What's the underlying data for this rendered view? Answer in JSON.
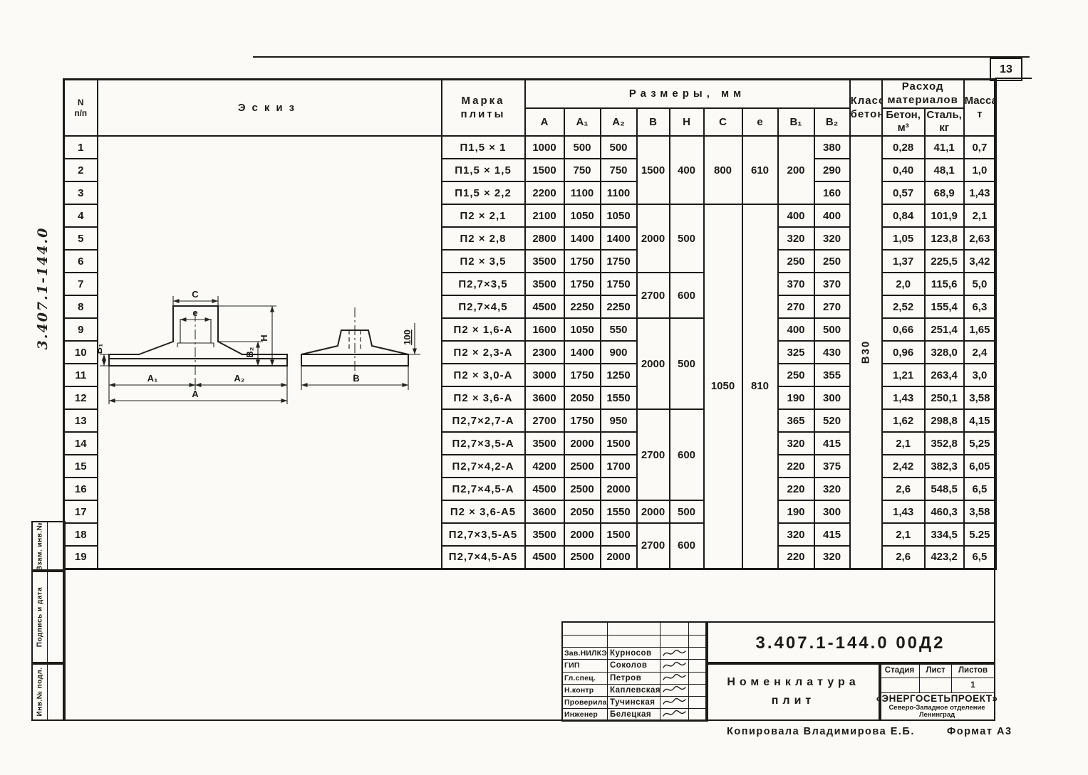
{
  "page": {
    "sheet_number": "13",
    "margin_code": "3.407.1-144.0",
    "copied_by": "Копировала  Владимирова Е.Б.",
    "format_note": "Формат А3"
  },
  "sidebar": {
    "stamps": [
      "Взам. инв.№",
      "Подпись и дата",
      "Инв.№ подл."
    ]
  },
  "table": {
    "headers": {
      "num": [
        "N",
        "п/п"
      ],
      "sketch": "Эскиз",
      "mark": [
        "Марка",
        "плиты"
      ],
      "sizes": "Размеры,  мм",
      "size_cols": [
        "А",
        "А₁",
        "А₂",
        "В",
        "Н",
        "С",
        "е",
        "В₁",
        "В₂"
      ],
      "concrete_class": [
        "Класс",
        "бетона"
      ],
      "materials": [
        "Расход",
        "материалов"
      ],
      "material_cols": [
        [
          "Бетон,",
          "м³"
        ],
        [
          "Сталь,",
          "кг"
        ]
      ],
      "mass": [
        "Масса,",
        "т"
      ]
    },
    "concrete_class_value": "В30",
    "rows": [
      [
        "1",
        "П1,5 × 1",
        "1000",
        "500",
        "500",
        [
          "1500",
          3
        ],
        [
          "400",
          3
        ],
        [
          "800",
          3
        ],
        [
          "610",
          3
        ],
        [
          "200",
          3
        ],
        "380",
        [
          "В30",
          19
        ],
        "0,28",
        "41,1",
        "0,7"
      ],
      [
        "2",
        "П1,5 × 1,5",
        "1500",
        "750",
        "750",
        null,
        null,
        null,
        null,
        null,
        "290",
        null,
        "0,40",
        "48,1",
        "1,0"
      ],
      [
        "3",
        "П1,5 × 2,2",
        "2200",
        "1100",
        "1100",
        null,
        null,
        null,
        null,
        null,
        "160",
        null,
        "0,57",
        "68,9",
        "1,43"
      ],
      [
        "4",
        "П2 × 2,1",
        "2100",
        "1050",
        "1050",
        [
          "2000",
          3
        ],
        [
          "500",
          3
        ],
        [
          "1050",
          16
        ],
        [
          "810",
          16
        ],
        "400",
        "400",
        null,
        "0,84",
        "101,9",
        "2,1"
      ],
      [
        "5",
        "П2 × 2,8",
        "2800",
        "1400",
        "1400",
        null,
        null,
        null,
        null,
        "320",
        "320",
        null,
        "1,05",
        "123,8",
        "2,63"
      ],
      [
        "6",
        "П2 × 3,5",
        "3500",
        "1750",
        "1750",
        null,
        null,
        null,
        null,
        "250",
        "250",
        null,
        "1,37",
        "225,5",
        "3,42"
      ],
      [
        "7",
        "П2,7×3,5",
        "3500",
        "1750",
        "1750",
        [
          "2700",
          2
        ],
        [
          "600",
          2
        ],
        null,
        null,
        "370",
        "370",
        null,
        "2,0",
        "115,6",
        "5,0"
      ],
      [
        "8",
        "П2,7×4,5",
        "4500",
        "2250",
        "2250",
        null,
        null,
        null,
        null,
        "270",
        "270",
        null,
        "2,52",
        "155,4",
        "6,3"
      ],
      [
        "9",
        "П2 × 1,6-А",
        "1600",
        "1050",
        "550",
        [
          "2000",
          4
        ],
        [
          "500",
          4
        ],
        null,
        null,
        "400",
        "500",
        null,
        "0,66",
        "251,4",
        "1,65"
      ],
      [
        "10",
        "П2 × 2,3-А",
        "2300",
        "1400",
        "900",
        null,
        null,
        null,
        null,
        "325",
        "430",
        null,
        "0,96",
        "328,0",
        "2,4"
      ],
      [
        "11",
        "П2 × 3,0-А",
        "3000",
        "1750",
        "1250",
        null,
        null,
        null,
        null,
        "250",
        "355",
        null,
        "1,21",
        "263,4",
        "3,0"
      ],
      [
        "12",
        "П2 × 3,6-А",
        "3600",
        "2050",
        "1550",
        null,
        null,
        null,
        null,
        "190",
        "300",
        null,
        "1,43",
        "250,1",
        "3,58"
      ],
      [
        "13",
        "П2,7×2,7-А",
        "2700",
        "1750",
        "950",
        [
          "2700",
          4
        ],
        [
          "600",
          4
        ],
        null,
        null,
        "365",
        "520",
        null,
        "1,62",
        "298,8",
        "4,15"
      ],
      [
        "14",
        "П2,7×3,5-А",
        "3500",
        "2000",
        "1500",
        null,
        null,
        null,
        null,
        "320",
        "415",
        null,
        "2,1",
        "352,8",
        "5,25"
      ],
      [
        "15",
        "П2,7×4,2-А",
        "4200",
        "2500",
        "1700",
        null,
        null,
        null,
        null,
        "220",
        "375",
        null,
        "2,42",
        "382,3",
        "6,05"
      ],
      [
        "16",
        "П2,7×4,5-А",
        "4500",
        "2500",
        "2000",
        null,
        null,
        null,
        null,
        "220",
        "320",
        null,
        "2,6",
        "548,5",
        "6,5"
      ],
      [
        "17",
        "П2 × 3,6-А5",
        "3600",
        "2050",
        "1550",
        "2000",
        "500",
        null,
        null,
        "190",
        "300",
        null,
        "1,43",
        "460,3",
        "3,58"
      ],
      [
        "18",
        "П2,7×3,5-А5",
        "3500",
        "2000",
        "1500",
        [
          "2700",
          2
        ],
        [
          "600",
          2
        ],
        null,
        null,
        "320",
        "415",
        null,
        "2,1",
        "334,5",
        "5.25"
      ],
      [
        "19",
        "П2,7×4,5-А5",
        "4500",
        "2500",
        "2000",
        null,
        null,
        null,
        null,
        "220",
        "320",
        null,
        "2,6",
        "423,2",
        "6,5"
      ]
    ]
  },
  "sketch_labels": {
    "c": "С",
    "e": "е",
    "a1": "А₁",
    "a2": "А₂",
    "a": "А",
    "b1": "В₁",
    "b2": "В₂",
    "h": "Н",
    "b": "В",
    "dim100": "100"
  },
  "titleblock": {
    "doc_number": "3.407.1-144.0   00Д2",
    "signatures": [
      {
        "role": "Зав.НИЛКЭ",
        "name": "Курносов"
      },
      {
        "role": "ГИП",
        "name": "Соколов"
      },
      {
        "role": "Гл.спец.",
        "name": "Петров"
      },
      {
        "role": "Н.контр",
        "name": "Каплевская"
      },
      {
        "role": "Проверила",
        "name": "Тучинская"
      },
      {
        "role": "Инженер",
        "name": "Белецкая"
      }
    ],
    "title": [
      "Номенклатура",
      "плит"
    ],
    "stage_header": [
      "Стадия",
      "Лист",
      "Листов"
    ],
    "stage_values": [
      "",
      "",
      "1"
    ],
    "org": [
      "«ЭНЕРГОСЕТЬПРОЕКТ»",
      "Северо-Западное отделение",
      "Ленинград"
    ]
  }
}
